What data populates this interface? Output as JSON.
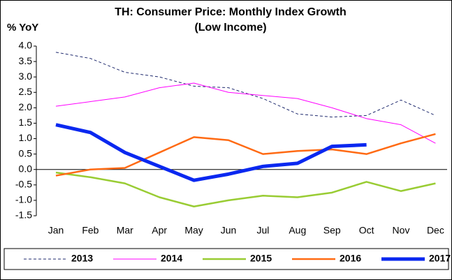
{
  "chart_data": {
    "type": "line",
    "title": [
      "TH: Consumer Price: Monthly Index Growth",
      "(Low Income)"
    ],
    "ylabel": "% YoY",
    "categories": [
      "Jan",
      "Feb",
      "Mar",
      "Apr",
      "May",
      "Jun",
      "Jul",
      "Aug",
      "Sep",
      "Oct",
      "Nov",
      "Dec"
    ],
    "ylim": [
      -1.5,
      4.0
    ],
    "yticks": [
      {
        "value": -1.5,
        "label": "-1.5"
      },
      {
        "value": -1.0,
        "label": "-1.0"
      },
      {
        "value": -0.5,
        "label": "-0.5"
      },
      {
        "value": 0,
        "label": "0.0"
      },
      {
        "value": 0.5,
        "label": "0.5"
      },
      {
        "value": 1.0,
        "label": "1.0"
      },
      {
        "value": 1.5,
        "label": "1.5"
      },
      {
        "value": 2.0,
        "label": "2.0"
      },
      {
        "value": 2.5,
        "label": "2.5"
      },
      {
        "value": 3.0,
        "label": "3.0"
      },
      {
        "value": 3.5,
        "label": "3.5"
      },
      {
        "value": 4.0,
        "label": "4.0"
      }
    ],
    "grid": false,
    "legend": "bottom",
    "series": [
      {
        "name": "2013",
        "color": "#1f2a6e",
        "line_width": 1,
        "dash": true,
        "values": [
          3.8,
          3.6,
          3.15,
          3.0,
          2.7,
          2.65,
          2.3,
          1.8,
          1.7,
          1.75,
          2.25,
          1.75
        ]
      },
      {
        "name": "2014",
        "color": "#ff00ff",
        "line_width": 1,
        "dash": false,
        "values": [
          2.05,
          2.2,
          2.35,
          2.65,
          2.8,
          2.5,
          2.4,
          2.3,
          2.0,
          1.65,
          1.45,
          0.85
        ]
      },
      {
        "name": "2015",
        "color": "#99cc33",
        "line_width": 2.5,
        "dash": false,
        "values": [
          -0.1,
          -0.25,
          -0.45,
          -0.9,
          -1.2,
          -1.0,
          -0.85,
          -0.9,
          -0.75,
          -0.4,
          -0.7,
          -0.45
        ]
      },
      {
        "name": "2016",
        "color": "#ff6a13",
        "line_width": 2.5,
        "dash": false,
        "values": [
          -0.2,
          0.0,
          0.05,
          0.55,
          1.05,
          0.95,
          0.5,
          0.6,
          0.65,
          0.5,
          0.85,
          1.15
        ]
      },
      {
        "name": "2017",
        "color": "#0a28f0",
        "line_width": 5,
        "dash": false,
        "values": [
          1.45,
          1.2,
          0.55,
          0.1,
          -0.35,
          -0.15,
          0.1,
          0.2,
          0.75,
          0.8,
          null,
          null
        ]
      }
    ]
  }
}
